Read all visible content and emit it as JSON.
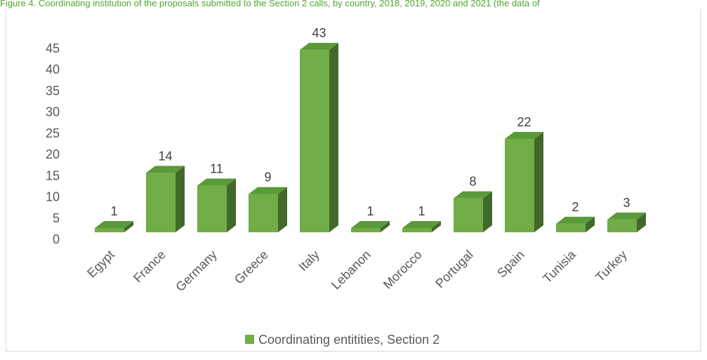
{
  "caption": "Figure 4. Coordinating institution of the proposals submitted to the Section 2 calls, by country, 2018, 2019, 2020 and 2021 (the data of",
  "colors": {
    "bar_front": "#70ad47",
    "bar_top": "#5a9a38",
    "bar_side": "#43682b",
    "text": "#595959"
  },
  "chart_data": {
    "type": "bar",
    "categories": [
      "Egypt",
      "France",
      "Germany",
      "Greece",
      "Italy",
      "Lebanon",
      "Morocco",
      "Portugal",
      "Spain",
      "Tunisia",
      "Turkey"
    ],
    "series": [
      {
        "name": "Coordinating entitities, Section 2",
        "values": [
          1,
          14,
          11,
          9,
          43,
          1,
          1,
          8,
          22,
          2,
          3
        ]
      }
    ],
    "yticks": [
      0,
      5,
      10,
      15,
      20,
      25,
      30,
      35,
      40,
      45
    ],
    "ylim": [
      0,
      45
    ],
    "grid": false,
    "legend": "bottom-center",
    "xlabel": "",
    "ylabel": ""
  }
}
